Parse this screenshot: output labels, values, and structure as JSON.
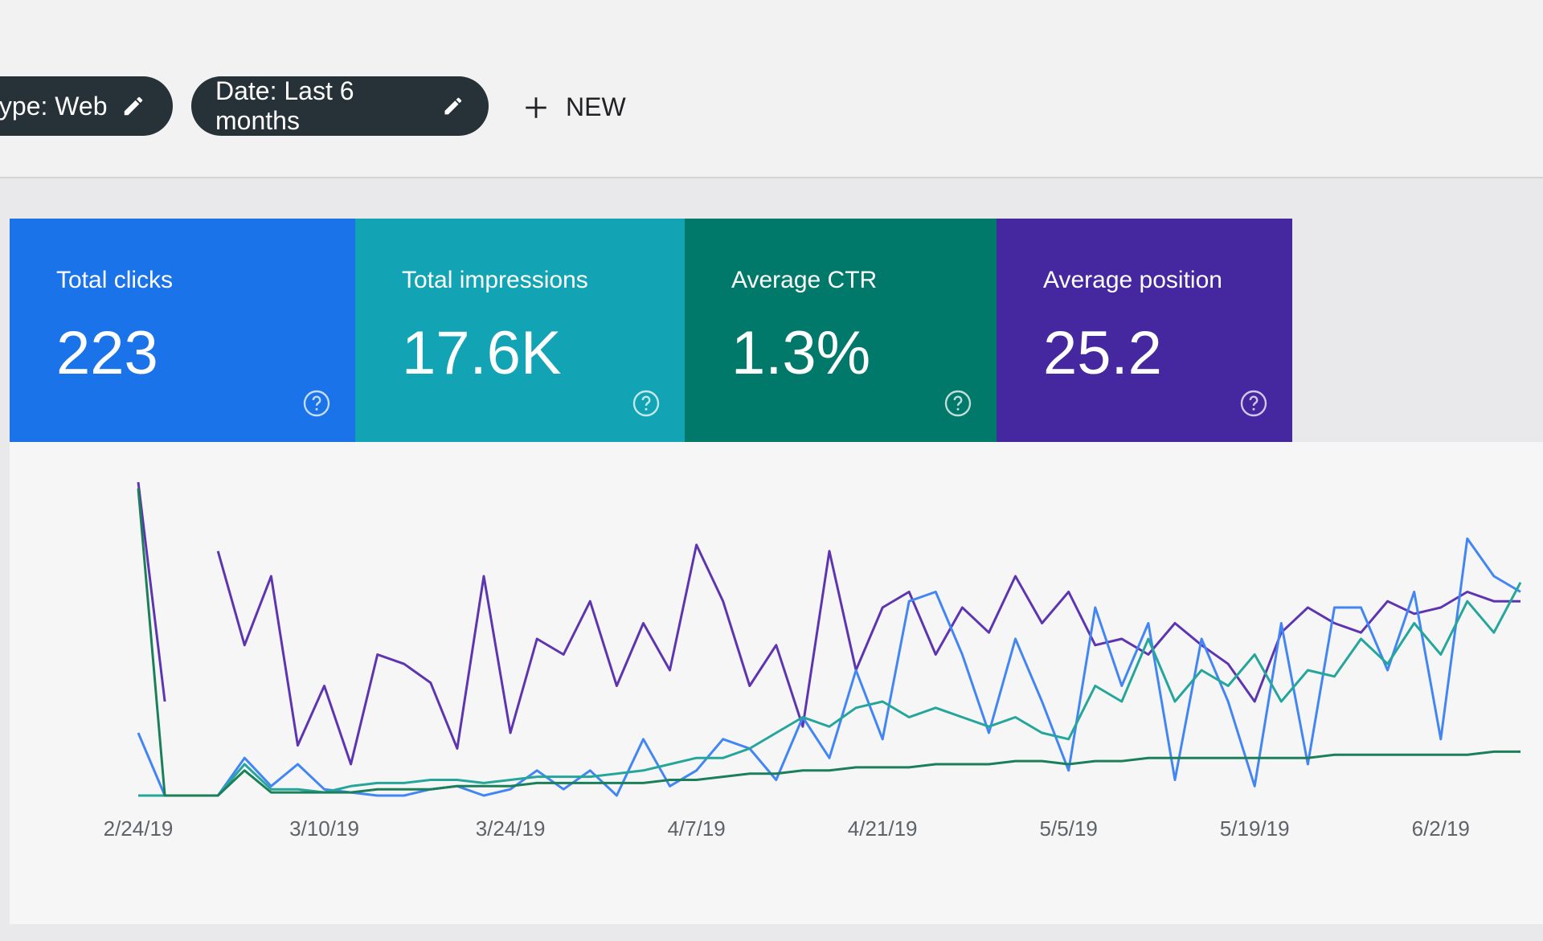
{
  "filters": [
    "type: Web",
    "Date: Last 6 months"
  ],
  "new_button": "NEW",
  "metrics": [
    {
      "label": "Total clicks",
      "value": "223",
      "color": "#1a73e8"
    },
    {
      "label": "Total impressions",
      "value": "17.6K",
      "color": "#12a4b4"
    },
    {
      "label": "Average CTR",
      "value": "1.3%",
      "color": "#00796b"
    },
    {
      "label": "Average position",
      "value": "25.2",
      "color": "#4527a0"
    }
  ],
  "chart_data": {
    "type": "line",
    "categories": [
      "2/24/19",
      null,
      null,
      null,
      null,
      null,
      null,
      "3/10/19",
      null,
      null,
      null,
      null,
      null,
      null,
      "3/24/19",
      null,
      null,
      null,
      null,
      null,
      null,
      "4/7/19",
      null,
      null,
      null,
      null,
      null,
      null,
      "4/21/19",
      null,
      null,
      null,
      null,
      null,
      null,
      "5/5/19",
      null,
      null,
      null,
      null,
      null,
      null,
      "5/19/19",
      null,
      null,
      null,
      null,
      null,
      null,
      "6/2/19",
      null,
      null,
      null
    ],
    "ylim": [
      0,
      100
    ],
    "series": [
      {
        "color": "#5e35b1",
        "values": [
          100,
          30,
          null,
          78,
          48,
          70,
          16,
          35,
          10,
          45,
          42,
          36,
          15,
          70,
          20,
          50,
          45,
          62,
          35,
          55,
          40,
          80,
          62,
          35,
          48,
          22,
          78,
          40,
          60,
          65,
          45,
          60,
          52,
          70,
          55,
          65,
          48,
          50,
          45,
          55,
          48,
          42,
          30,
          52,
          60,
          55,
          52,
          62,
          58,
          60,
          65,
          62,
          62
        ]
      },
      {
        "color": "#4285f4",
        "values": [
          20,
          0,
          0,
          0,
          12,
          3,
          10,
          2,
          1,
          0,
          0,
          2,
          3,
          0,
          2,
          8,
          2,
          8,
          0,
          18,
          3,
          8,
          18,
          15,
          5,
          25,
          12,
          40,
          18,
          62,
          65,
          45,
          20,
          50,
          30,
          8,
          60,
          35,
          55,
          5,
          50,
          30,
          3,
          55,
          10,
          60,
          60,
          40,
          65,
          18,
          82,
          70,
          65
        ]
      },
      {
        "color": "#26a69a",
        "values": [
          0,
          0,
          0,
          0,
          10,
          2,
          2,
          1,
          3,
          4,
          4,
          5,
          5,
          4,
          5,
          6,
          6,
          6,
          7,
          8,
          10,
          12,
          12,
          15,
          20,
          25,
          22,
          28,
          30,
          25,
          28,
          25,
          22,
          25,
          20,
          18,
          35,
          30,
          50,
          30,
          40,
          35,
          45,
          30,
          40,
          38,
          50,
          42,
          55,
          45,
          62,
          52,
          68
        ]
      },
      {
        "color": "#1b7f5a",
        "values": [
          98,
          0,
          0,
          0,
          8,
          1,
          1,
          1,
          1,
          2,
          2,
          2,
          3,
          3,
          3,
          4,
          4,
          4,
          4,
          4,
          5,
          5,
          6,
          7,
          7,
          8,
          8,
          9,
          9,
          9,
          10,
          10,
          10,
          11,
          11,
          10,
          11,
          11,
          12,
          12,
          12,
          12,
          12,
          12,
          12,
          13,
          13,
          13,
          13,
          13,
          13,
          14,
          14
        ]
      }
    ]
  }
}
